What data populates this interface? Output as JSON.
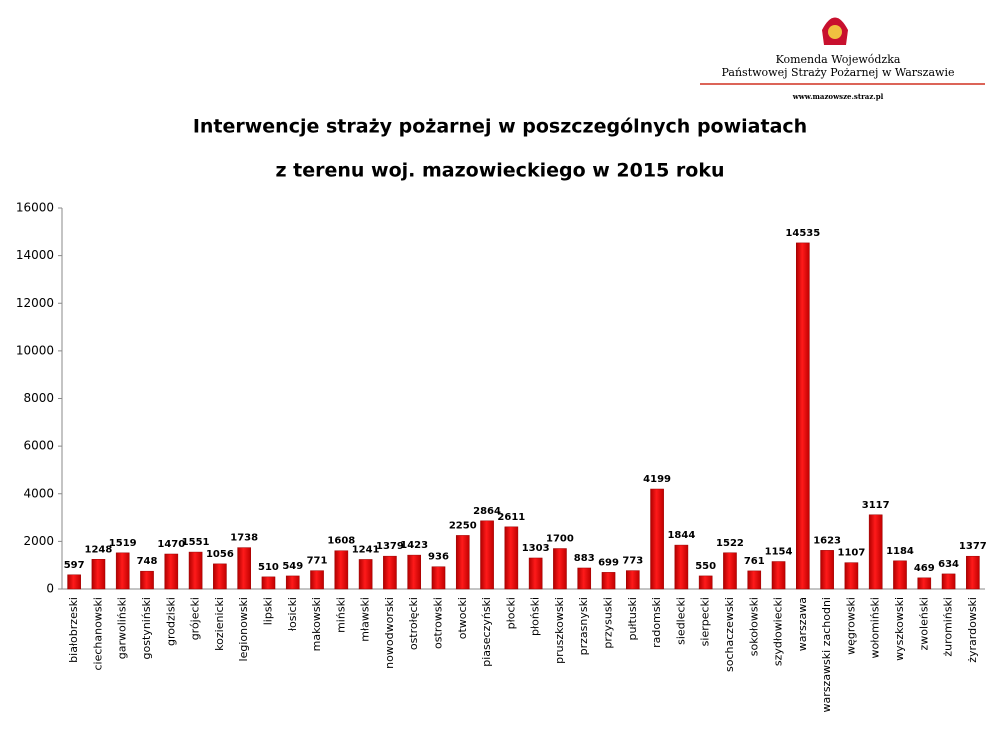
{
  "header": {
    "org_line1": "Komenda Wojewódzka",
    "org_line2": "Państwowej Straży Pożarnej w Warszawie",
    "website": "www.mazowsze.straz.pl"
  },
  "chart_data": {
    "type": "bar",
    "title_lines": [
      "Interwencje straży pożarnej w poszczególnych powiatach",
      "z terenu woj. mazowieckiego w 2015 roku"
    ],
    "categories": [
      "białobrzeski",
      "ciechanowski",
      "garwoliński",
      "gostyniński",
      "grodziski",
      "grójecki",
      "kozienicki",
      "legionowski",
      "lipski",
      "łosicki",
      "makowski",
      "miński",
      "mławski",
      "nowodworski",
      "ostrołęcki",
      "ostrowski",
      "otwocki",
      "piaseczyński",
      "płocki",
      "płoński",
      "pruszkowski",
      "przasnyski",
      "przysuski",
      "pułtuski",
      "radomski",
      "siedlecki",
      "sierpecki",
      "sochaczewski",
      "sokołowski",
      "szydłowiecki",
      "warszawa",
      "warszawski zachodni",
      "węgrowski",
      "wołomiński",
      "wyszkowski",
      "zwoleński",
      "żuromiński",
      "żyrardowski"
    ],
    "values": [
      597,
      1248,
      1519,
      748,
      1470,
      1551,
      1056,
      1738,
      510,
      549,
      771,
      1608,
      1241,
      1379,
      1423,
      936,
      2250,
      2864,
      2611,
      1303,
      1700,
      883,
      699,
      773,
      4199,
      1844,
      550,
      1522,
      761,
      1154,
      14535,
      1623,
      1107,
      3117,
      1184,
      469,
      634,
      1377
    ],
    "color": "#e30000",
    "ylim": [
      0,
      16000
    ],
    "yticks": [
      0,
      2000,
      4000,
      6000,
      8000,
      10000,
      12000,
      14000,
      16000
    ],
    "grid": false
  }
}
